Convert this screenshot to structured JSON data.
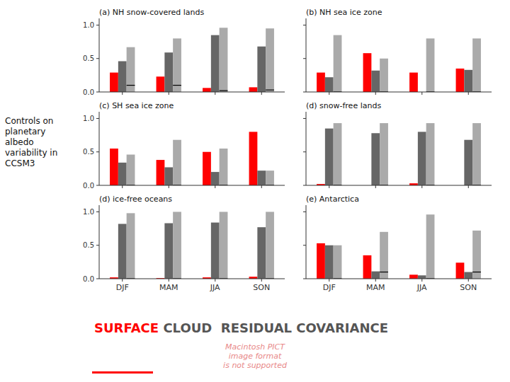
{
  "title": "Controls on\nplanetary\nalbedo\nvariability in\nCCSM3",
  "annotations": [
    {
      "text": "SURFACE",
      "color": "#ff0000"
    },
    {
      "text": " CLOUD  RESIDUAL COVARIANCE",
      "color": "#555555"
    },
    {
      "text": "Macintosh PICT\nimage format\nis not supported",
      "color": "#e88888"
    }
  ],
  "chart_data": [
    {
      "type": "bar",
      "title": "(a) NH snow-covered lands",
      "categories": [
        "DJF",
        "MAM",
        "JJA",
        "SON"
      ],
      "series": [
        {
          "color": "#ff0000",
          "values": [
            0.29,
            0.23,
            0.06,
            0.07
          ]
        },
        {
          "color": "#666666",
          "values": [
            0.46,
            0.59,
            0.85,
            0.68
          ]
        },
        {
          "color": "#aaaaaa",
          "values": [
            0.67,
            0.8,
            0.96,
            0.95
          ]
        },
        {
          "type": "hline",
          "color": "#000000",
          "values": [
            0.1,
            0.1,
            0.02,
            0.03
          ]
        }
      ],
      "ylim": [
        0.0,
        1.1
      ],
      "yticks": [
        {
          "value": 0.0,
          "label": "0.0"
        },
        {
          "value": 0.5,
          "label": "0.5"
        },
        {
          "value": 1.0,
          "label": "1.0"
        }
      ],
      "tick_labels": "y"
    },
    {
      "type": "bar",
      "title": "(b) NH sea ice zone",
      "categories": [
        "DJF",
        "MAM",
        "JJA",
        "SON"
      ],
      "series": [
        {
          "color": "#ff0000",
          "values": [
            0.29,
            0.58,
            0.29,
            0.35
          ]
        },
        {
          "color": "#666666",
          "values": [
            0.22,
            0.32,
            0.0,
            0.33
          ]
        },
        {
          "color": "#aaaaaa",
          "values": [
            0.85,
            0.5,
            0.8,
            0.8
          ]
        },
        {
          "type": "hline",
          "color": "#000000",
          "values": [
            0.0,
            0.0,
            0.0,
            0.0
          ]
        }
      ],
      "ylim": [
        0.0,
        1.1
      ],
      "yticks": [
        {
          "value": 0.0,
          "label": "0.0"
        },
        {
          "value": 0.5,
          "label": "0.5"
        },
        {
          "value": 1.0,
          "label": "1.0"
        }
      ],
      "tick_labels": false
    },
    {
      "type": "bar",
      "title": "(c) SH sea ice zone",
      "categories": [
        "DJF",
        "MAM",
        "JJA",
        "SON"
      ],
      "series": [
        {
          "color": "#ff0000",
          "values": [
            0.55,
            0.38,
            0.5,
            0.8
          ]
        },
        {
          "color": "#666666",
          "values": [
            0.34,
            0.27,
            0.2,
            0.22
          ]
        },
        {
          "color": "#aaaaaa",
          "values": [
            0.46,
            0.68,
            0.55,
            0.22
          ]
        },
        {
          "type": "hline",
          "color": "#000000",
          "values": [
            0.0,
            0.0,
            0.0,
            0.0
          ]
        }
      ],
      "ylim": [
        0.0,
        1.1
      ],
      "yticks": [
        {
          "value": 0.0,
          "label": "0.0"
        },
        {
          "value": 0.5,
          "label": "0.5"
        },
        {
          "value": 1.0,
          "label": "1.0"
        }
      ],
      "tick_labels": "y"
    },
    {
      "type": "bar",
      "title": "(d) snow-free lands",
      "categories": [
        "DJF",
        "MAM",
        "JJA",
        "SON"
      ],
      "series": [
        {
          "color": "#ff0000",
          "values": [
            0.02,
            0.0,
            0.03,
            0.0
          ]
        },
        {
          "color": "#666666",
          "values": [
            0.85,
            0.78,
            0.8,
            0.68
          ]
        },
        {
          "color": "#aaaaaa",
          "values": [
            0.93,
            0.93,
            0.93,
            0.93
          ]
        },
        {
          "type": "hline",
          "color": "#000000",
          "values": [
            0.0,
            0.0,
            0.0,
            0.0
          ]
        }
      ],
      "ylim": [
        0.0,
        1.1
      ],
      "yticks": [
        {
          "value": 0.0,
          "label": "0.0"
        },
        {
          "value": 0.5,
          "label": "0.5"
        },
        {
          "value": 1.0,
          "label": "1.0"
        }
      ],
      "tick_labels": false
    },
    {
      "type": "bar",
      "title": "(d) ice-free oceans",
      "categories": [
        "DJF",
        "MAM",
        "JJA",
        "SON"
      ],
      "series": [
        {
          "color": "#ff0000",
          "values": [
            0.02,
            0.01,
            0.02,
            0.03
          ]
        },
        {
          "color": "#666666",
          "values": [
            0.82,
            0.83,
            0.84,
            0.77
          ]
        },
        {
          "color": "#aaaaaa",
          "values": [
            0.98,
            1.0,
            1.0,
            1.0
          ]
        },
        {
          "type": "hline",
          "color": "#000000",
          "values": [
            0.0,
            0.0,
            0.0,
            0.0
          ]
        }
      ],
      "ylim": [
        0.0,
        1.1
      ],
      "yticks": [
        {
          "value": 0.0,
          "label": "0.0"
        },
        {
          "value": 0.5,
          "label": "0.5"
        },
        {
          "value": 1.0,
          "label": "1.0"
        }
      ],
      "tick_labels": true
    },
    {
      "type": "bar",
      "title": "(e) Antarctica",
      "categories": [
        "DJF",
        "MAM",
        "JJA",
        "SON"
      ],
      "series": [
        {
          "color": "#ff0000",
          "values": [
            0.53,
            0.35,
            0.06,
            0.24
          ]
        },
        {
          "color": "#666666",
          "values": [
            0.5,
            0.11,
            0.05,
            0.1
          ]
        },
        {
          "color": "#aaaaaa",
          "values": [
            0.5,
            0.7,
            0.96,
            0.72
          ]
        },
        {
          "type": "hline",
          "color": "#000000",
          "values": [
            0.0,
            0.1,
            0.0,
            0.1
          ]
        }
      ],
      "ylim": [
        0.0,
        1.1
      ],
      "yticks": [
        {
          "value": 0.0,
          "label": "0.0"
        },
        {
          "value": 0.5,
          "label": "0.5"
        },
        {
          "value": 1.0,
          "label": "1.0"
        }
      ],
      "tick_labels": "x"
    }
  ]
}
